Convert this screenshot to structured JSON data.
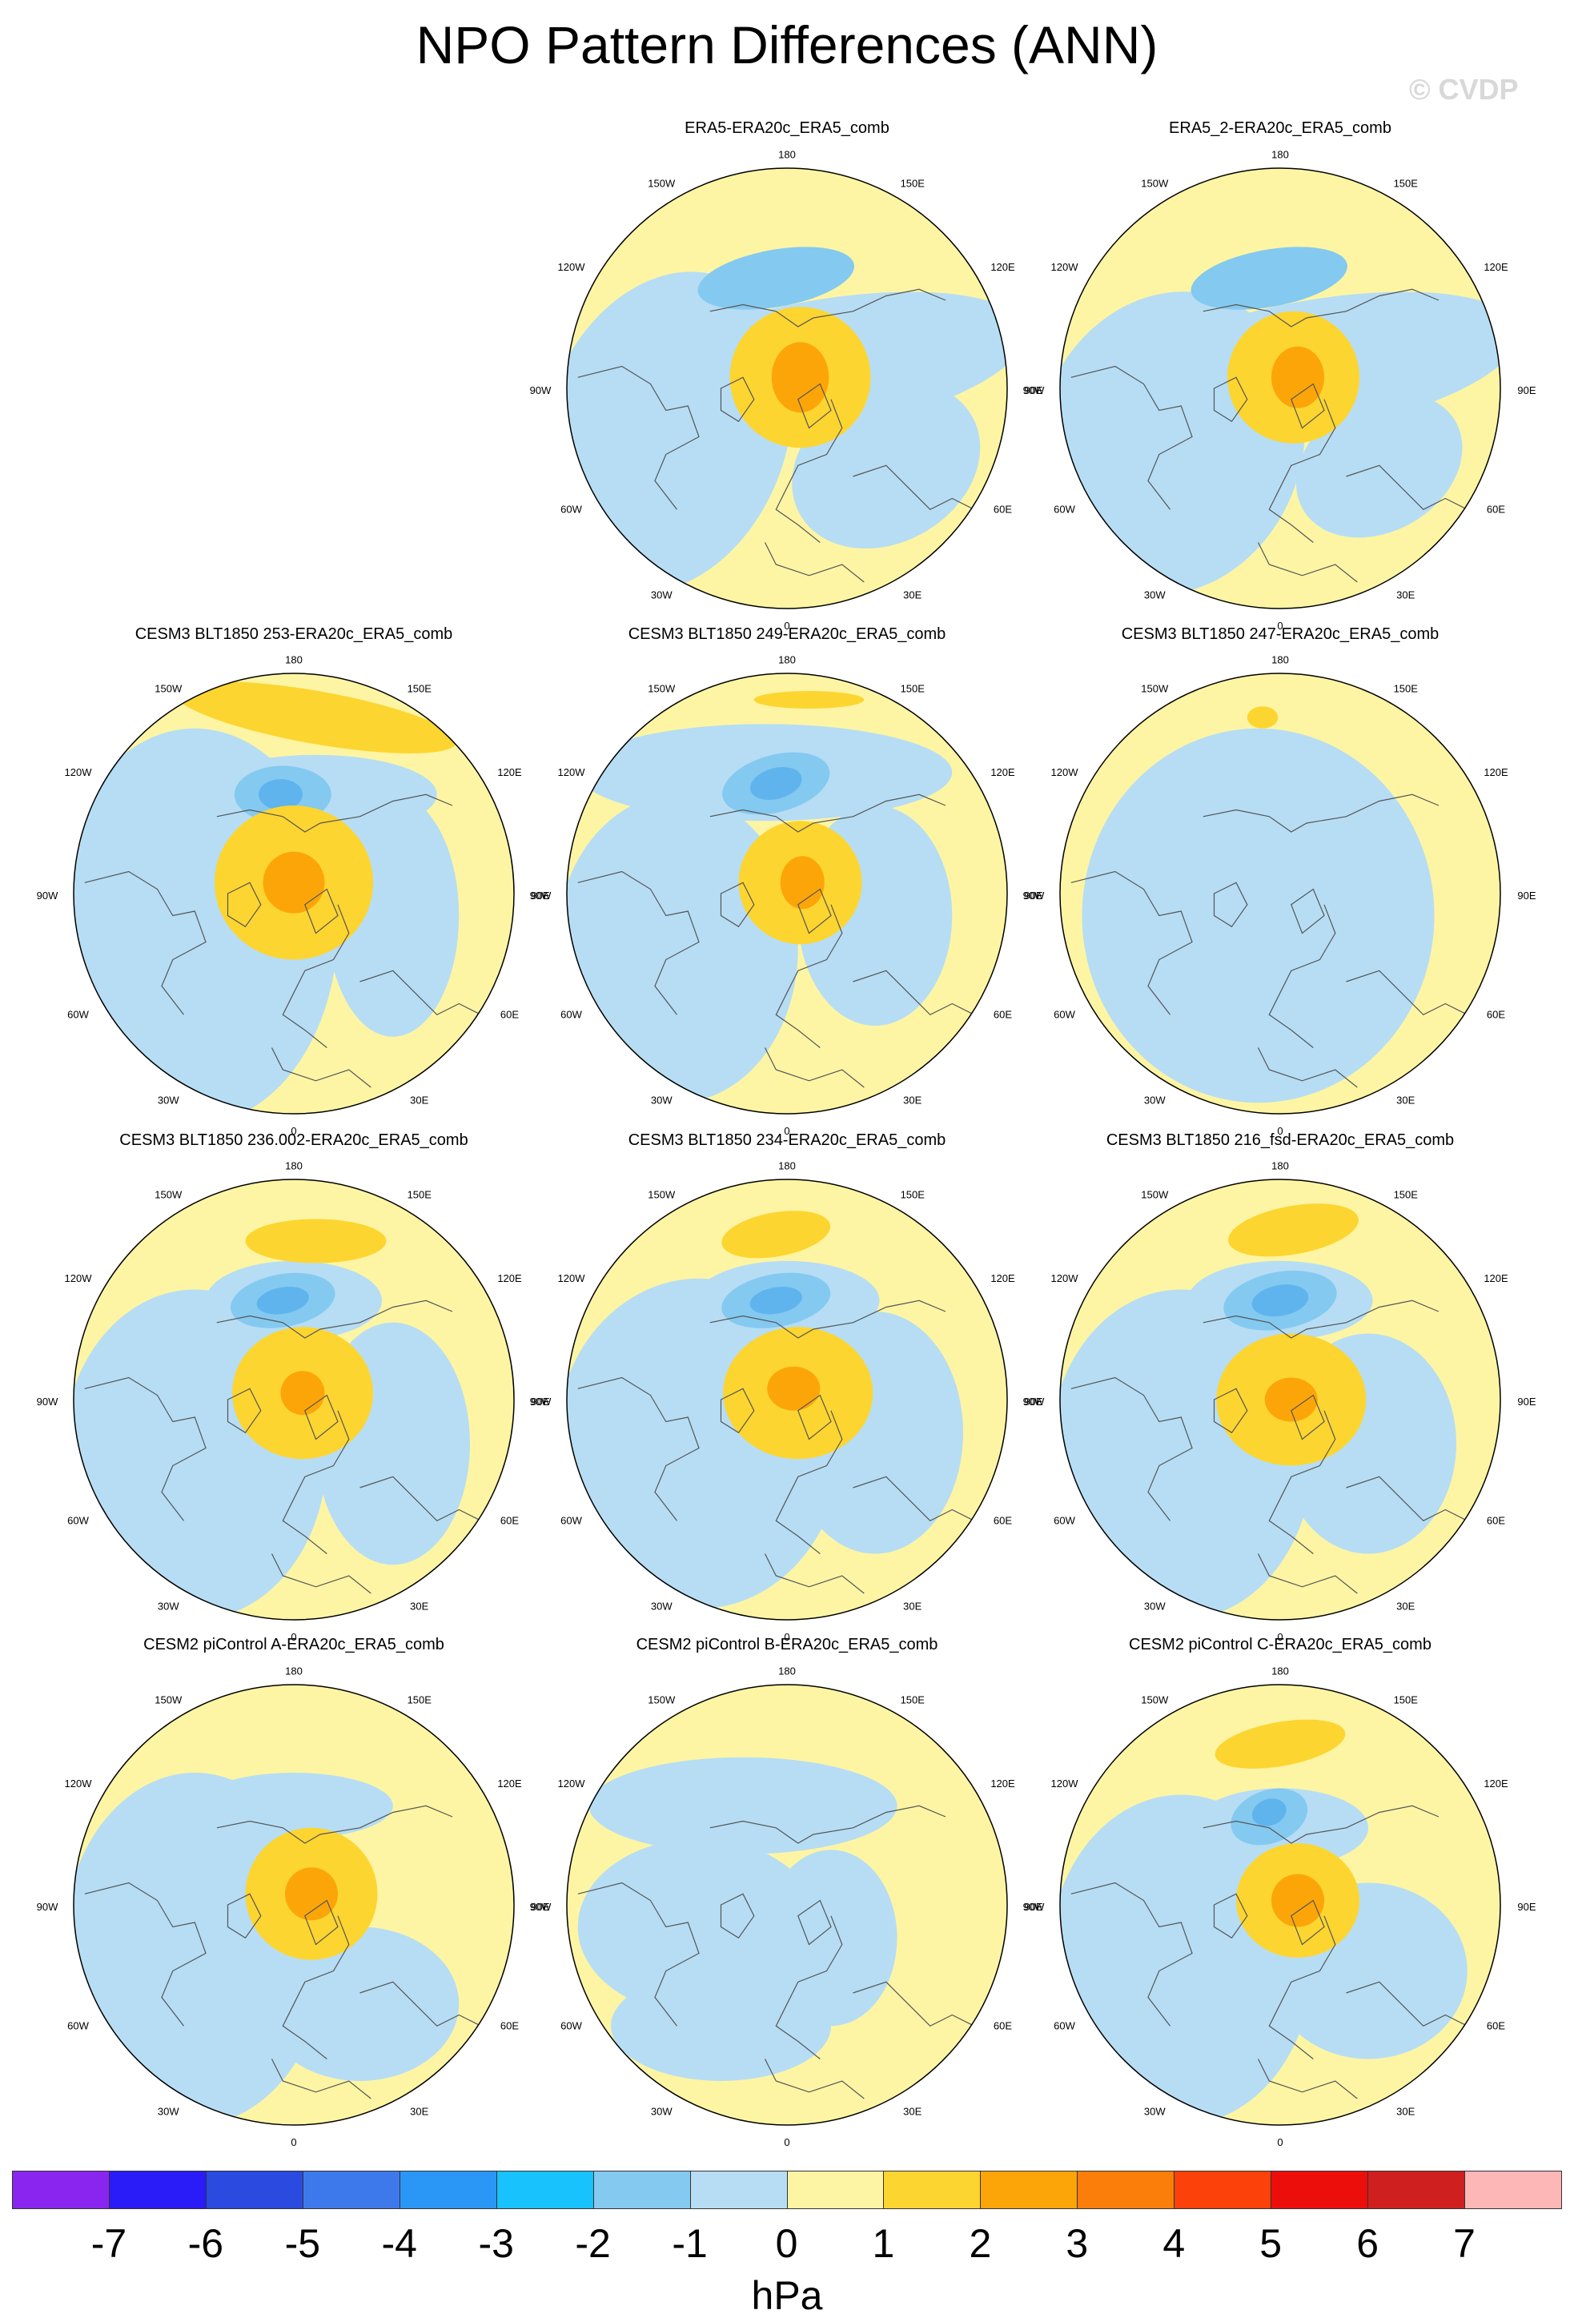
{
  "title": "NPO Pattern Differences (ANN)",
  "copyright": "© CVDP",
  "units": "hPa",
  "colors": {
    "ocean_blue": "#b6ddf4",
    "land_yellow": "#fdf5a4",
    "pos1": "#fdd530",
    "pos2": "#fca509",
    "neg1": "#84c9f0",
    "neg2": "#60b4ee"
  },
  "colorbar": {
    "colors": [
      "#8a25f0",
      "#2a1cf9",
      "#2a4ae0",
      "#3d79ea",
      "#2a96f5",
      "#18c2fc",
      "#84c9f0",
      "#b6ddf4",
      "#fdf5a4",
      "#fdd530",
      "#fca509",
      "#fb7e0a",
      "#fc420a",
      "#ec0e0a",
      "#d01f1f",
      "#fdb7b7"
    ],
    "ticks": [
      "-7",
      "-6",
      "-5",
      "-4",
      "-3",
      "-2",
      "-1",
      "0",
      "1",
      "2",
      "3",
      "4",
      "5",
      "6",
      "7"
    ]
  },
  "lon_labels": {
    "top": "180",
    "bottom": "0",
    "left_upper1": "150W",
    "left_upper2": "120W",
    "left_mid": "90W",
    "left_lower2": "60W",
    "left_lower1": "30W",
    "right_upper1": "150E",
    "right_upper2": "120E",
    "right_mid": "90E",
    "right_lower2": "60E",
    "right_lower1": "30E"
  },
  "chart_data": [
    {
      "type": "heatmap",
      "projection": "north-polar-stereographic",
      "title": "ERA5-ERA20c_ERA5_comb",
      "field": "NPO pattern difference",
      "units": "hPa",
      "levels": [
        -7,
        -6,
        -5,
        -4,
        -3,
        -2,
        -1,
        0,
        1,
        2,
        3,
        4,
        5,
        6,
        7
      ],
      "max_positive_level": 2,
      "min_negative_level": -1
    },
    {
      "type": "heatmap",
      "projection": "north-polar-stereographic",
      "title": "ERA5_2-ERA20c_ERA5_comb",
      "field": "NPO pattern difference",
      "units": "hPa",
      "levels": [
        -7,
        -6,
        -5,
        -4,
        -3,
        -2,
        -1,
        0,
        1,
        2,
        3,
        4,
        5,
        6,
        7
      ],
      "max_positive_level": 2,
      "min_negative_level": -1
    },
    {
      "type": "heatmap",
      "projection": "north-polar-stereographic",
      "title": "CESM3 BLT1850 253-ERA20c_ERA5_comb",
      "field": "NPO pattern difference",
      "units": "hPa",
      "levels": [
        -7,
        -6,
        -5,
        -4,
        -3,
        -2,
        -1,
        0,
        1,
        2,
        3,
        4,
        5,
        6,
        7
      ],
      "max_positive_level": 3,
      "min_negative_level": -2
    },
    {
      "type": "heatmap",
      "projection": "north-polar-stereographic",
      "title": "CESM3 BLT1850 249-ERA20c_ERA5_comb",
      "field": "NPO pattern difference",
      "units": "hPa",
      "levels": [
        -7,
        -6,
        -5,
        -4,
        -3,
        -2,
        -1,
        0,
        1,
        2,
        3,
        4,
        5,
        6,
        7
      ],
      "max_positive_level": 2,
      "min_negative_level": -2
    },
    {
      "type": "heatmap",
      "projection": "north-polar-stereographic",
      "title": "CESM3 BLT1850 247-ERA20c_ERA5_comb",
      "field": "NPO pattern difference",
      "units": "hPa",
      "levels": [
        -7,
        -6,
        -5,
        -4,
        -3,
        -2,
        -1,
        0,
        1,
        2,
        3,
        4,
        5,
        6,
        7
      ],
      "max_positive_level": 2,
      "min_negative_level": -1
    },
    {
      "type": "heatmap",
      "projection": "north-polar-stereographic",
      "title": "CESM3 BLT1850 236.002-ERA20c_ERA5_comb",
      "field": "NPO pattern difference",
      "units": "hPa",
      "levels": [
        -7,
        -6,
        -5,
        -4,
        -3,
        -2,
        -1,
        0,
        1,
        2,
        3,
        4,
        5,
        6,
        7
      ],
      "max_positive_level": 3,
      "min_negative_level": -2
    },
    {
      "type": "heatmap",
      "projection": "north-polar-stereographic",
      "title": "CESM3 BLT1850 234-ERA20c_ERA5_comb",
      "field": "NPO pattern difference",
      "units": "hPa",
      "levels": [
        -7,
        -6,
        -5,
        -4,
        -3,
        -2,
        -1,
        0,
        1,
        2,
        3,
        4,
        5,
        6,
        7
      ],
      "max_positive_level": 3,
      "min_negative_level": -2
    },
    {
      "type": "heatmap",
      "projection": "north-polar-stereographic",
      "title": "CESM3 BLT1850 216_fsd-ERA20c_ERA5_comb",
      "field": "NPO pattern difference",
      "units": "hPa",
      "levels": [
        -7,
        -6,
        -5,
        -4,
        -3,
        -2,
        -1,
        0,
        1,
        2,
        3,
        4,
        5,
        6,
        7
      ],
      "max_positive_level": 3,
      "min_negative_level": -2
    },
    {
      "type": "heatmap",
      "projection": "north-polar-stereographic",
      "title": "CESM2 piControl A-ERA20c_ERA5_comb",
      "field": "NPO pattern difference",
      "units": "hPa",
      "levels": [
        -7,
        -6,
        -5,
        -4,
        -3,
        -2,
        -1,
        0,
        1,
        2,
        3,
        4,
        5,
        6,
        7
      ],
      "max_positive_level": 3,
      "min_negative_level": -1
    },
    {
      "type": "heatmap",
      "projection": "north-polar-stereographic",
      "title": "CESM2 piControl B-ERA20c_ERA5_comb",
      "field": "NPO pattern difference",
      "units": "hPa",
      "levels": [
        -7,
        -6,
        -5,
        -4,
        -3,
        -2,
        -1,
        0,
        1,
        2,
        3,
        4,
        5,
        6,
        7
      ],
      "max_positive_level": 1,
      "min_negative_level": -1
    },
    {
      "type": "heatmap",
      "projection": "north-polar-stereographic",
      "title": "CESM2 piControl C-ERA20c_ERA5_comb",
      "field": "NPO pattern difference",
      "units": "hPa",
      "levels": [
        -7,
        -6,
        -5,
        -4,
        -3,
        -2,
        -1,
        0,
        1,
        2,
        3,
        4,
        5,
        6,
        7
      ],
      "max_positive_level": 2,
      "min_negative_level": -2
    }
  ]
}
